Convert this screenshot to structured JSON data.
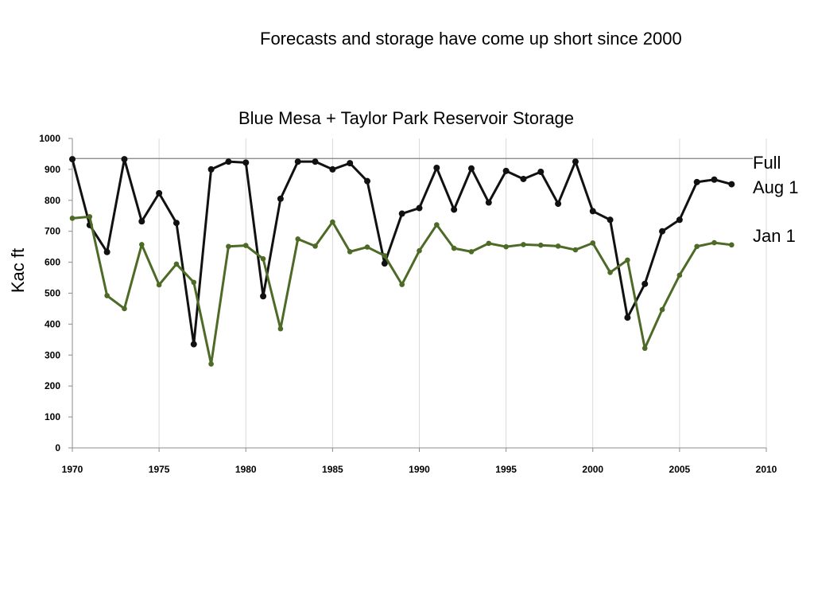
{
  "slide": {
    "title": "Forecasts and storage have come up short since 2000"
  },
  "chart_data": {
    "type": "line",
    "title": "Blue Mesa + Taylor Park Reservoir Storage",
    "xlabel": "",
    "ylabel": "Kac ft",
    "xlim": [
      1970,
      2010
    ],
    "ylim": [
      0,
      1000
    ],
    "xticks": [
      1970,
      1975,
      1980,
      1985,
      1990,
      1995,
      2000,
      2005,
      2010
    ],
    "yticks": [
      0,
      100,
      200,
      300,
      400,
      500,
      600,
      700,
      800,
      900,
      1000
    ],
    "grid": "vertical",
    "legend": "none",
    "x": [
      1970,
      1971,
      1972,
      1973,
      1974,
      1975,
      1976,
      1977,
      1978,
      1979,
      1980,
      1981,
      1982,
      1983,
      1984,
      1985,
      1986,
      1987,
      1988,
      1989,
      1990,
      1991,
      1992,
      1993,
      1994,
      1995,
      1996,
      1997,
      1998,
      1999,
      2000,
      2001,
      2002,
      2003,
      2004,
      2005,
      2006,
      2007,
      2008
    ],
    "series": [
      {
        "name": "Aug 1",
        "color": "#111111",
        "values": [
          933,
          720,
          633,
          933,
          732,
          823,
          727,
          335,
          900,
          925,
          922,
          490,
          805,
          925,
          925,
          900,
          920,
          862,
          596,
          757,
          775,
          905,
          770,
          903,
          793,
          895,
          869,
          892,
          789,
          925,
          765,
          737,
          421,
          530,
          700,
          737,
          859,
          867,
          852
        ]
      },
      {
        "name": "Jan 1",
        "color": "#4d6a26",
        "values": [
          742,
          747,
          492,
          450,
          657,
          527,
          594,
          535,
          271,
          651,
          654,
          611,
          385,
          675,
          652,
          730,
          634,
          649,
          621,
          528,
          637,
          721,
          645,
          634,
          661,
          650,
          657,
          655,
          652,
          640,
          662,
          567,
          607,
          322,
          447,
          558,
          651,
          663,
          656
        ]
      }
    ],
    "reference_line": {
      "label": "Full",
      "value": 935
    },
    "annotations": [
      "Full",
      "Aug 1",
      "Jan 1"
    ]
  }
}
